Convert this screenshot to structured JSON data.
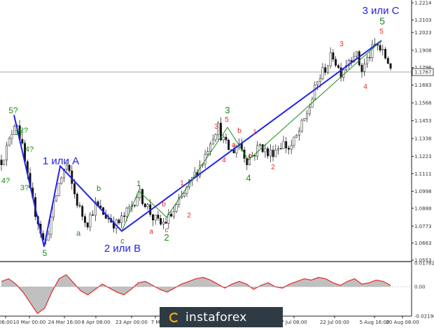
{
  "chart_data": [
    {
      "type": "candlestick",
      "title": "",
      "price_scale": {
        "ylim": [
          1.0553,
          1.2214
        ],
        "ticks": [
          "1.2214",
          "1.2103",
          "1.2023",
          "1.1908",
          "1.1796",
          "1.1683",
          "1.1568",
          "1.1453",
          "1.1338",
          "1.1223",
          "1.1111",
          "1.0998",
          "1.0888",
          "1.0773",
          "1.0663",
          "1.0553"
        ],
        "current_price": "1.1767"
      },
      "time_axis": {
        "ticks": [
          "06:00",
          "10 Mar 00:00",
          "24 Mar 16:00",
          "8 Apr 08:00",
          "23 Apr 00:00",
          "7 M",
          "7 Jul 08:00",
          "22 Jul 00:00",
          "5 Aug 16:00",
          "20 Aug 08:00"
        ]
      },
      "price_path": [
        1.12,
        1.13,
        1.148,
        1.125,
        1.098,
        1.082,
        1.064,
        1.085,
        1.105,
        1.117,
        1.1,
        1.086,
        1.08,
        1.091,
        1.086,
        1.082,
        1.078,
        1.083,
        1.09,
        1.099,
        1.092,
        1.083,
        1.078,
        1.081,
        1.087,
        1.095,
        1.103,
        1.112,
        1.12,
        1.133,
        1.142,
        1.13,
        1.125,
        1.131,
        1.12,
        1.124,
        1.13,
        1.123,
        1.127,
        1.131,
        1.127,
        1.135,
        1.145,
        1.158,
        1.172,
        1.18,
        1.188,
        1.176,
        1.184,
        1.19,
        1.178,
        1.187,
        1.195,
        1.188,
        1.181
      ],
      "wave_lines": {
        "blue": [
          [
            1.149,
            "5?"
          ],
          [
            1.064,
            "5"
          ],
          [
            1.116,
            "1 или A"
          ],
          [
            1.074,
            "2 или B"
          ],
          [
            1.197,
            "3 или C"
          ]
        ],
        "green": [
          [
            1.074,
            ""
          ],
          [
            1.1,
            "1"
          ],
          [
            1.083,
            "2"
          ],
          [
            1.141,
            "3"
          ],
          [
            1.12,
            "4"
          ],
          [
            1.197,
            "5"
          ]
        ]
      },
      "wave_labels": {
        "green": [
          "5?",
          "1?",
          "2?",
          "4?",
          "3?",
          "4?",
          "5",
          "a",
          "b",
          "c",
          "1",
          "2",
          "3",
          "4",
          "5"
        ],
        "red": [
          "a",
          "b",
          "c",
          "1",
          "2",
          "3",
          "4",
          "5",
          "a",
          "b",
          "c",
          "1",
          "2",
          "3",
          "4",
          "5"
        ],
        "blue": [
          "1 или A",
          "2 или B",
          "3 или C"
        ]
      }
    },
    {
      "type": "line",
      "title": "",
      "ylim": [
        -0.02198,
        0.01782
      ],
      "ticks": [
        "0.01782",
        "0.00",
        "-0.02198"
      ],
      "values": [
        0.004,
        0.006,
        0.002,
        -0.004,
        -0.012,
        -0.02,
        -0.016,
        -0.004,
        0.006,
        0.009,
        0.003,
        -0.003,
        -0.006,
        -0.002,
        0.002,
        -0.001,
        -0.004,
        -0.006,
        -0.002,
        0.003,
        0.004,
        0.001,
        -0.002,
        -0.004,
        -0.001,
        0.002,
        0.004,
        0.006,
        0.007,
        0.005,
        0.002,
        -0.001,
        0.002,
        0.004,
        0.002,
        -0.002,
        0.001,
        0.003,
        0.0,
        -0.001,
        0.002,
        0.004,
        0.006,
        0.005,
        0.007,
        0.006,
        0.003,
        0.001,
        0.004,
        0.006,
        0.002,
        0.003,
        0.005,
        0.004,
        0.001
      ]
    }
  ],
  "watermark": {
    "text": "instaforex",
    "color": "#2f3b44"
  },
  "colors": {
    "blue": "#2323e6",
    "green": "#1a8a1a",
    "red": "#e52727",
    "candles": "#111111",
    "oscillator": "#e52727",
    "osc_fill": "#b0b0b0"
  }
}
